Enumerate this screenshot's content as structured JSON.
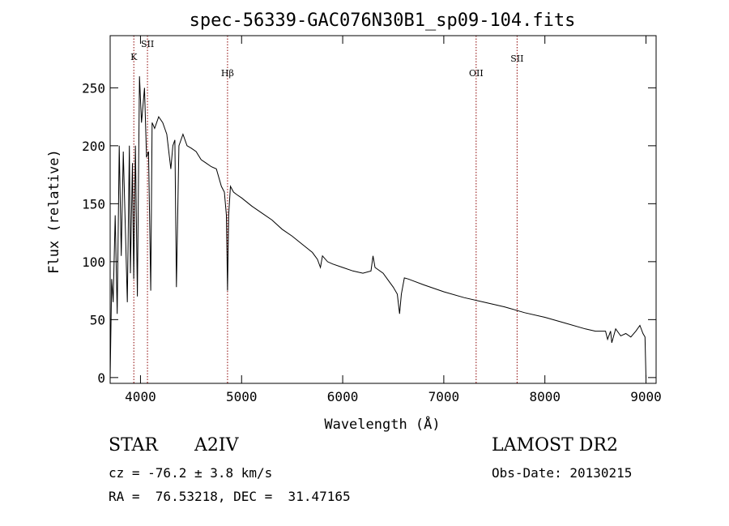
{
  "chart_data": {
    "type": "line",
    "title": "spec-56339-GAC076N30B1_sp09-104.fits",
    "xlabel": "Wavelength (Å)",
    "ylabel": "Flux (relative)",
    "xlim": [
      3700,
      9100
    ],
    "ylim": [
      -5,
      295
    ],
    "xticks": [
      4000,
      5000,
      6000,
      7000,
      8000,
      9000
    ],
    "yticks": [
      0,
      50,
      100,
      150,
      200,
      250
    ],
    "grid": false,
    "line_color": "#000000",
    "series": [
      {
        "x": [
          3700,
          3715,
          3730,
          3750,
          3770,
          3790,
          3810,
          3830,
          3850,
          3870,
          3890,
          3900,
          3920,
          3933,
          3950,
          3969,
          3990,
          4010,
          4040,
          4060,
          4080,
          4101,
          4115,
          4140,
          4180,
          4220,
          4260,
          4300,
          4320,
          4340,
          4355,
          4380,
          4420,
          4460,
          4500,
          4550,
          4600,
          4650,
          4700,
          4750,
          4800,
          4830,
          4850,
          4861,
          4872,
          4890,
          4920,
          4950,
          5000,
          5100,
          5200,
          5300,
          5400,
          5500,
          5600,
          5700,
          5750,
          5780,
          5800,
          5850,
          5900,
          6000,
          6100,
          6200,
          6280,
          6300,
          6320,
          6400,
          6450,
          6500,
          6540,
          6563,
          6580,
          6610,
          6650,
          6800,
          7000,
          7200,
          7400,
          7600,
          7800,
          8000,
          8200,
          8400,
          8500,
          8600,
          8620,
          8650,
          8662,
          8700,
          8750,
          8800,
          8850,
          8900,
          8940,
          8970,
          8990,
          9000
        ],
        "y": [
          0,
          85,
          65,
          140,
          55,
          200,
          105,
          195,
          130,
          65,
          200,
          90,
          185,
          85,
          200,
          70,
          260,
          220,
          250,
          190,
          195,
          75,
          220,
          215,
          225,
          220,
          210,
          180,
          200,
          205,
          78,
          200,
          210,
          200,
          198,
          195,
          188,
          185,
          182,
          180,
          165,
          160,
          140,
          75,
          140,
          165,
          160,
          158,
          155,
          148,
          142,
          136,
          128,
          122,
          115,
          108,
          102,
          95,
          105,
          100,
          98,
          95,
          92,
          90,
          92,
          105,
          95,
          90,
          84,
          78,
          72,
          55,
          72,
          86,
          85,
          80,
          74,
          69,
          65,
          61,
          56,
          52,
          47,
          42,
          40,
          40,
          33,
          40,
          30,
          42,
          36,
          38,
          35,
          40,
          45,
          38,
          35,
          0
        ]
      }
    ],
    "lines": [
      {
        "label": "K",
        "wavelength": 3934
      },
      {
        "label": "SII",
        "wavelength": 4069
      },
      {
        "label": "Hβ",
        "wavelength": 4861
      },
      {
        "label": "OII",
        "wavelength": 7320
      },
      {
        "label": "SII",
        "wavelength": 7725
      }
    ],
    "line_marker_color": "#8b0000"
  },
  "info": {
    "object_class": "STAR",
    "subclass": "A2IV",
    "survey": "LAMOST DR2",
    "cz_line": "cz = -76.2 ± 3.8 km/s",
    "obs_date": "Obs-Date: 20130215",
    "radec_line": "RA =  76.53218, DEC =  31.47165"
  }
}
